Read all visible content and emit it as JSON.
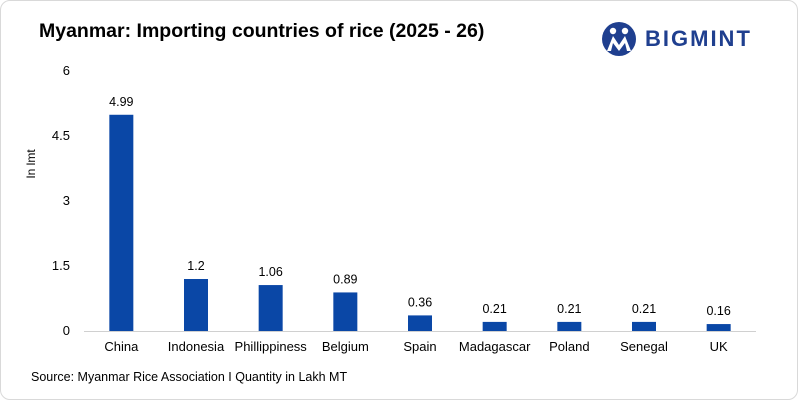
{
  "title": "Myanmar: Importing countries of rice (2025 - 26)",
  "brand": {
    "name": "BIGMINT",
    "color": "#1f3f8f"
  },
  "source": "Source: Myanmar Rice Association I Quantity in Lakh MT",
  "bar_color": "#0a47a6",
  "chart_data": {
    "type": "bar",
    "title": "Myanmar: Importing countries of rice (2025 - 26)",
    "xlabel": "",
    "ylabel": "In lmt",
    "ylim": [
      0,
      6
    ],
    "yticks": [
      0,
      1.5,
      3,
      4.5,
      6
    ],
    "ytick_labels": [
      "0",
      "1.5",
      "3",
      "4.5",
      "6"
    ],
    "grid": false,
    "categories": [
      "China",
      "Indonesia",
      "Phillippiness",
      "Belgium",
      "Spain",
      "Madagascar",
      "Poland",
      "Senegal",
      "UK"
    ],
    "values": [
      4.99,
      1.2,
      1.06,
      0.89,
      0.36,
      0.21,
      0.21,
      0.21,
      0.16
    ],
    "value_labels": [
      "4.99",
      "1.2",
      "1.06",
      "0.89",
      "0.36",
      "0.21",
      "0.21",
      "0.21",
      "0.16"
    ]
  }
}
